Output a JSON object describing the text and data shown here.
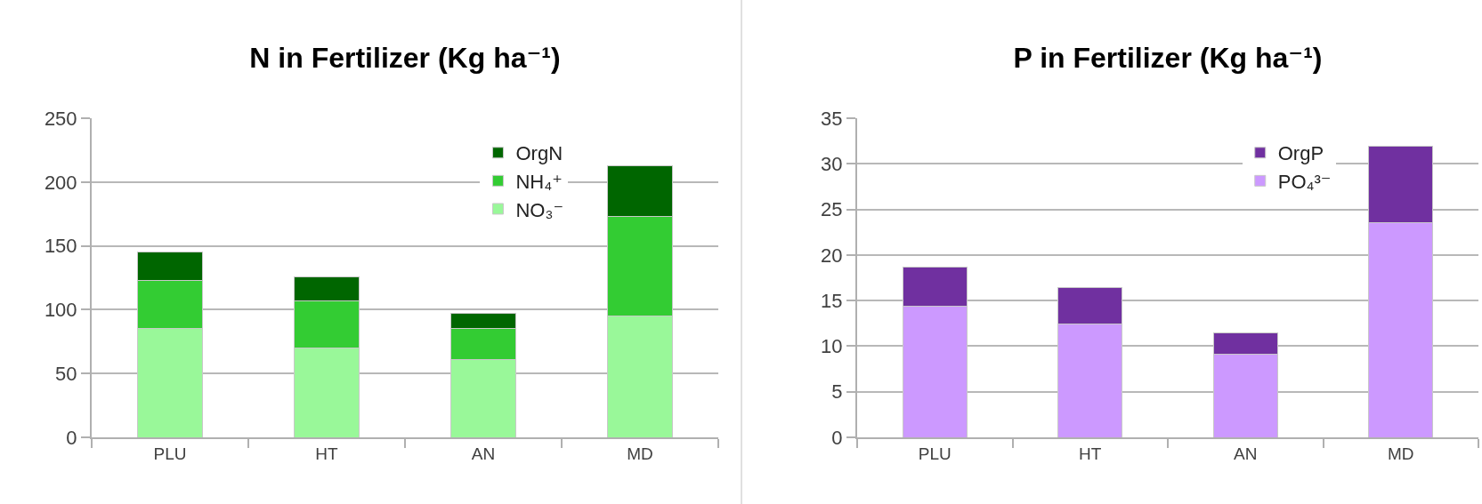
{
  "chart_data": [
    {
      "type": "bar",
      "title": "N in Fertilizer (Kg ha⁻¹)",
      "categories": [
        "PLU",
        "HT",
        "AN",
        "MD"
      ],
      "stacked": true,
      "series": [
        {
          "name": "NO₃⁻",
          "color": "#99f899",
          "values": [
            85,
            70,
            61,
            95
          ]
        },
        {
          "name": "NH₄⁺",
          "color": "#33cc33",
          "values": [
            38,
            37,
            24,
            78
          ]
        },
        {
          "name": "OrgN",
          "color": "#006600",
          "values": [
            22,
            19,
            12,
            40
          ]
        }
      ],
      "ylim": [
        0,
        250
      ],
      "yticks": [
        0,
        50,
        100,
        150,
        200,
        250
      ],
      "grid": "y",
      "legend": "top right"
    },
    {
      "type": "bar",
      "title": "P in Fertilizer (Kg ha⁻¹)",
      "categories": [
        "PLU",
        "HT",
        "AN",
        "MD"
      ],
      "stacked": true,
      "series": [
        {
          "name": "PO₄³⁻",
          "color": "#cc99ff",
          "values": [
            14.4,
            12.4,
            9.1,
            23.5
          ]
        },
        {
          "name": "OrgP",
          "color": "#7030a0",
          "values": [
            4.3,
            4.0,
            2.4,
            8.4
          ]
        }
      ],
      "ylim": [
        0,
        35
      ],
      "yticks": [
        0,
        5,
        10,
        15,
        20,
        25,
        30,
        35
      ],
      "grid": "y",
      "legend": "top right"
    }
  ]
}
